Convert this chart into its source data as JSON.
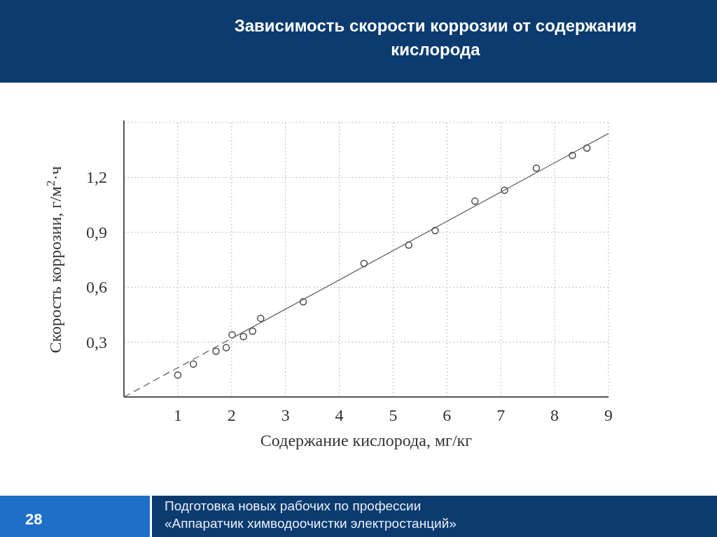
{
  "chart_data": {
    "type": "scatter",
    "title": "Зависимость скорости коррозии от содержания кислорода",
    "xlabel": "Содержание кислорода, мг/кг",
    "ylabel": "Скорость коррозии, г/м$^{2}$·ч",
    "xlim": [
      0,
      9
    ],
    "ylim": [
      0,
      1.5
    ],
    "xticks": [
      1,
      2,
      3,
      4,
      5,
      6,
      7,
      8,
      9
    ],
    "yticks": [
      {
        "value": 0.3,
        "label": "0,3"
      },
      {
        "value": 0.6,
        "label": "0,6"
      },
      {
        "value": 0.9,
        "label": "0,9"
      },
      {
        "value": 1.2,
        "label": "1,2"
      },
      {
        "value": 1.5,
        "label": null
      }
    ],
    "grid": true,
    "series": [
      {
        "color": "#444444",
        "marker": "circle",
        "x": [
          1.0,
          1.29,
          1.71,
          1.9,
          2.01,
          2.22,
          2.39,
          2.54,
          3.33,
          4.46,
          5.29,
          5.78,
          6.52,
          7.07,
          7.66,
          8.33,
          8.6
        ],
        "values": [
          0.12,
          0.18,
          0.25,
          0.27,
          0.34,
          0.33,
          0.36,
          0.43,
          0.52,
          0.73,
          0.83,
          0.91,
          1.07,
          1.13,
          1.25,
          1.32,
          1.36
        ]
      },
      {
        "type": "line",
        "color": "#666666",
        "line_style": "dashed",
        "x": [
          0,
          2
        ],
        "values": [
          0,
          0.32
        ]
      },
      {
        "type": "line",
        "color": "#666666",
        "line_style": "solid",
        "x": [
          2,
          9
        ],
        "values": [
          0.32,
          1.44
        ]
      }
    ],
    "annotations": [
      "28",
      "Подготовка новых рабочих по профессии «Аппаратчик химводоочистки электростанций»"
    ]
  }
}
